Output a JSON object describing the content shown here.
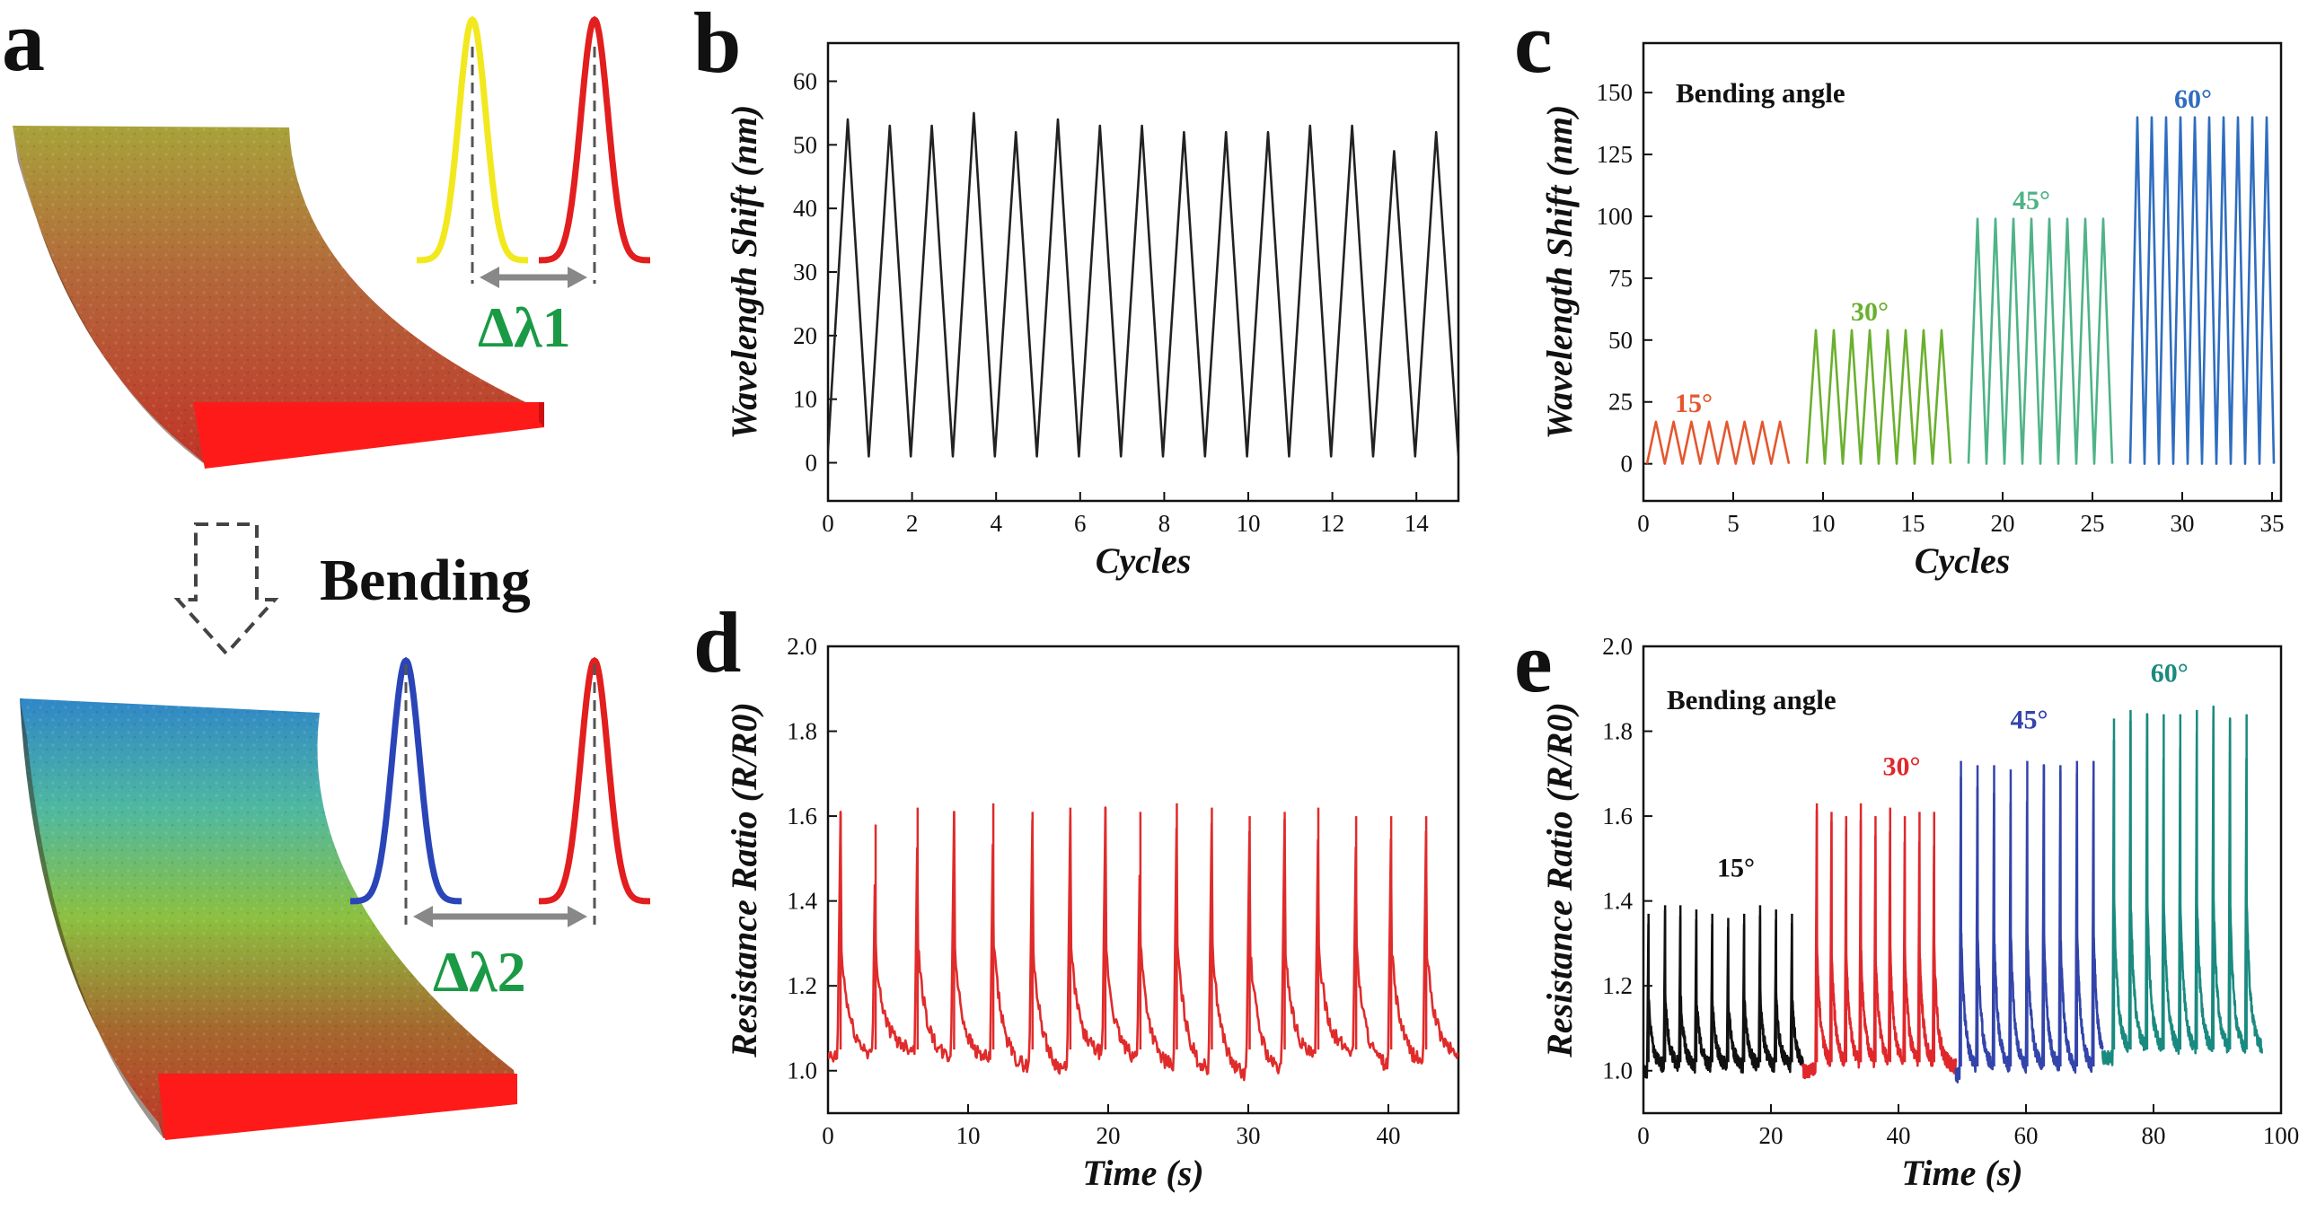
{
  "panel_a": {
    "label": "a",
    "arrow_label": "Bending",
    "delta1": "Δλ1",
    "delta2": "Δλ2",
    "peak_colors": {
      "yellow": "#f2e81e",
      "red": "#e21e1e",
      "blue": "#2a45b8"
    }
  },
  "panels": {
    "b": {
      "label": "b"
    },
    "c": {
      "label": "c",
      "note": "Bending angle"
    },
    "d": {
      "label": "d"
    },
    "e": {
      "label": "e",
      "note": "Bending angle"
    }
  },
  "chart_data": [
    {
      "id": "b",
      "type": "line",
      "title": "",
      "xlabel": "Cycles",
      "ylabel": "Wavelength Shift (nm)",
      "xlim": [
        0,
        15
      ],
      "ylim": [
        -6,
        66
      ],
      "xticks": [
        0,
        2,
        4,
        6,
        8,
        10,
        12,
        14
      ],
      "yticks": [
        0,
        10,
        20,
        30,
        40,
        50,
        60
      ],
      "series": [
        {
          "color": "#222222",
          "x": [
            0,
            0.47,
            0.97,
            1.47,
            1.97,
            2.47,
            2.97,
            3.47,
            3.97,
            4.47,
            4.97,
            5.47,
            5.97,
            6.47,
            6.97,
            7.47,
            7.97,
            8.47,
            8.97,
            9.47,
            9.97,
            10.47,
            10.97,
            11.47,
            11.97,
            12.47,
            12.97,
            13.47,
            13.97,
            14.47,
            15
          ],
          "y": [
            2,
            54,
            1,
            53,
            1,
            53,
            1,
            55,
            1,
            52,
            1,
            54,
            1,
            53,
            1,
            53,
            1,
            52,
            1,
            52,
            1,
            52,
            1,
            53,
            1,
            53,
            1,
            49,
            1,
            52,
            1
          ]
        }
      ]
    },
    {
      "id": "c",
      "type": "line",
      "title": "",
      "xlabel": "Cycles",
      "ylabel": "Wavelength Shift (nm)",
      "xlim": [
        0,
        35.5
      ],
      "ylim": [
        -15,
        170
      ],
      "xticks": [
        0,
        5,
        10,
        15,
        20,
        25,
        30,
        35
      ],
      "yticks": [
        0,
        25,
        50,
        75,
        100,
        125,
        150
      ],
      "series": [
        {
          "name": "15°",
          "color": "#e4572e",
          "x_start": 0.2,
          "x_end": 8.1,
          "cycles": 8,
          "amplitude": 17
        },
        {
          "name": "30°",
          "color": "#6ab02f",
          "x_start": 9.1,
          "x_end": 17.1,
          "cycles": 8,
          "amplitude": 54
        },
        {
          "name": "45°",
          "color": "#4fb387",
          "x_start": 18.1,
          "x_end": 26.1,
          "cycles": 8,
          "amplitude": 99
        },
        {
          "name": "60°",
          "color": "#2e6dbf",
          "x_start": 27.1,
          "x_end": 35.1,
          "cycles": 10,
          "amplitude": 140
        }
      ],
      "annotations": [
        {
          "text": "15°",
          "x": 2.8,
          "y": 18,
          "color": "#e4572e"
        },
        {
          "text": "30°",
          "x": 12.6,
          "y": 55,
          "color": "#6ab02f"
        },
        {
          "text": "45°",
          "x": 21.6,
          "y": 100,
          "color": "#4fb387"
        },
        {
          "text": "60°",
          "x": 30.6,
          "y": 141,
          "color": "#2e6dbf"
        }
      ]
    },
    {
      "id": "d",
      "type": "line",
      "title": "",
      "xlabel": "Time (s)",
      "ylabel": "Resistance Ratio (R/R0)",
      "xlim": [
        0,
        45
      ],
      "ylim": [
        0.9,
        2.0
      ],
      "xticks": [
        0,
        10,
        20,
        30,
        40
      ],
      "yticks": [
        1.0,
        1.2,
        1.4,
        1.6,
        1.8,
        2.0
      ],
      "series": [
        {
          "color": "#e02b2b",
          "baseline": 1.03,
          "peak_times": [
            0.9,
            3.4,
            6.4,
            9.0,
            11.8,
            14.6,
            17.3,
            19.8,
            22.3,
            24.9,
            27.4,
            30.1,
            32.6,
            35.0,
            37.7,
            40.2,
            42.7
          ],
          "peak_values": [
            1.61,
            1.58,
            1.62,
            1.61,
            1.63,
            1.61,
            1.62,
            1.62,
            1.61,
            1.63,
            1.62,
            1.6,
            1.61,
            1.62,
            1.6,
            1.6,
            1.6
          ],
          "trough_values": [
            1.02,
            1.04,
            1.01,
            1.01,
            0.99,
            0.98,
            1.02,
            1.01,
            0.99,
            0.98,
            0.97,
            0.98,
            1.01,
            1.03,
            0.99,
            1.0,
            1.02
          ]
        }
      ]
    },
    {
      "id": "e",
      "type": "line",
      "title": "",
      "xlabel": "Time (s)",
      "ylabel": "Resistance Ratio (R/R0)",
      "xlim": [
        0,
        100
      ],
      "ylim": [
        0.9,
        2.0
      ],
      "xticks": [
        0,
        20,
        40,
        60,
        80,
        100
      ],
      "yticks": [
        1.0,
        1.2,
        1.4,
        1.6,
        1.8,
        2.0
      ],
      "series": [
        {
          "name": "15°",
          "color": "#111111",
          "x_start": 0,
          "x_end": 25,
          "baseline": 1.0,
          "peak_times": [
            0.8,
            3.4,
            5.8,
            8.3,
            10.8,
            13.3,
            15.8,
            18.3,
            20.8,
            23.3
          ],
          "peak_values": [
            1.37,
            1.39,
            1.39,
            1.38,
            1.37,
            1.36,
            1.37,
            1.39,
            1.38,
            1.37
          ]
        },
        {
          "name": "30°",
          "color": "#e0282c",
          "x_start": 25,
          "x_end": 49,
          "baseline": 1.0,
          "peak_times": [
            27.2,
            29.5,
            31.8,
            34.1,
            36.4,
            38.7,
            41.0,
            43.3,
            45.6
          ],
          "peak_values": [
            1.63,
            1.61,
            1.6,
            1.63,
            1.6,
            1.62,
            1.6,
            1.61,
            1.61
          ]
        },
        {
          "name": "45°",
          "color": "#3344aa",
          "x_start": 49,
          "x_end": 72,
          "baseline": 0.99,
          "peak_times": [
            49.8,
            52.4,
            55.0,
            57.6,
            60.2,
            62.8,
            65.4,
            68.0,
            70.6
          ],
          "peak_values": [
            1.73,
            1.72,
            1.72,
            1.71,
            1.73,
            1.72,
            1.72,
            1.73,
            1.73
          ]
        },
        {
          "name": "60°",
          "color": "#1a8a80",
          "x_start": 72,
          "x_end": 97,
          "baseline": 1.03,
          "peak_times": [
            73.8,
            76.4,
            79.0,
            81.6,
            84.2,
            86.8,
            89.4,
            92.0,
            94.6
          ],
          "peak_values": [
            1.83,
            1.85,
            1.84,
            1.84,
            1.84,
            1.85,
            1.86,
            1.83,
            1.84
          ]
        }
      ],
      "annotations": [
        {
          "text": "15°",
          "x": 14.5,
          "y": 1.44,
          "color": "#111111"
        },
        {
          "text": "30°",
          "x": 40.5,
          "y": 1.68,
          "color": "#e0282c"
        },
        {
          "text": "45°",
          "x": 60.5,
          "y": 1.79,
          "color": "#3344aa"
        },
        {
          "text": "60°",
          "x": 82.5,
          "y": 1.9,
          "color": "#1a8a80"
        }
      ]
    }
  ]
}
